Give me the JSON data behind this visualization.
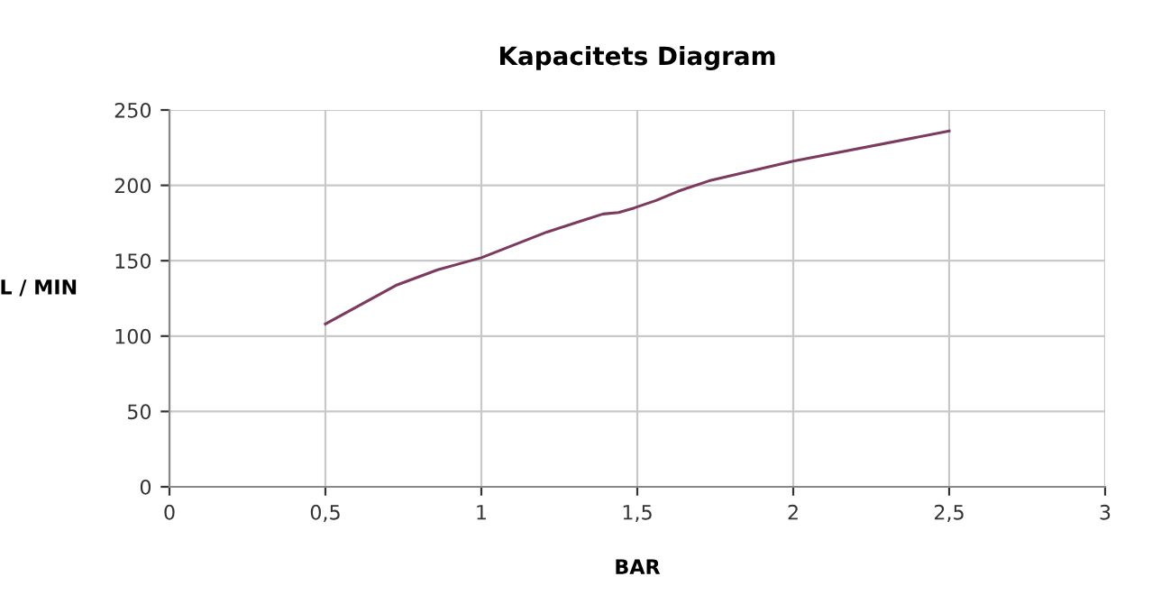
{
  "chart_data": {
    "type": "line",
    "title": "Kapacitets Diagram",
    "xlabel": "BAR",
    "ylabel": "L / MIN",
    "series": [
      {
        "color": "#7b3a5e",
        "x": [
          0.5,
          0.73,
          0.86,
          1.0,
          1.21,
          1.33,
          1.39,
          1.44,
          1.49,
          1.56,
          1.63,
          1.73,
          2.0,
          2.5
        ],
        "values": [
          108,
          134,
          144,
          152,
          169,
          177,
          181,
          182,
          185,
          190,
          196,
          203,
          216,
          236
        ]
      }
    ],
    "xlim": [
      0,
      3
    ],
    "xticks": [
      0,
      {
        "value": 0.5,
        "label": "0,5"
      },
      1,
      {
        "value": 1.5,
        "label": "1,5"
      },
      2,
      {
        "value": 2.5,
        "label": "2,5"
      },
      3
    ],
    "ylim": [
      0,
      250
    ],
    "yticks": [
      0,
      50,
      100,
      150,
      200,
      250
    ],
    "grid": true,
    "legend": false,
    "marker": "none",
    "line_style": "solid"
  }
}
